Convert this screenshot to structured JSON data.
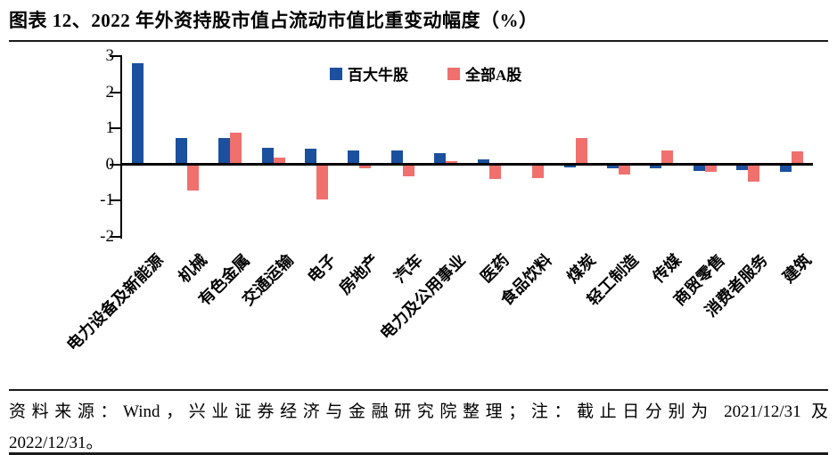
{
  "title": "图表 12、2022 年外资持股市值占流动市值比重变动幅度（%）",
  "footer": {
    "line1": "资料来源：Wind，兴业证券经济与金融研究院整理；注：截止日分别为 2021/12/31 及",
    "line2": "2022/12/31。"
  },
  "colors": {
    "series1": "#1b509e",
    "series2": "#f0706e",
    "axis": "#000000"
  },
  "chart_data": {
    "type": "bar",
    "title": "2022 年外资持股市值占流动市值比重变动幅度（%）",
    "categories": [
      "电力设备及新能源",
      "机械",
      "有色金属",
      "交通运输",
      "电子",
      "房地产",
      "汽车",
      "电力及公用事业",
      "医药",
      "食品饮料",
      "煤炭",
      "轻工制造",
      "传媒",
      "商贸零售",
      "消费者服务",
      "建筑"
    ],
    "series": [
      {
        "name": "百大牛股",
        "color": "#1b509e",
        "values": [
          2.8,
          0.74,
          0.74,
          0.45,
          0.42,
          0.38,
          0.39,
          0.32,
          0.13,
          0.0,
          -0.08,
          -0.1,
          -0.12,
          -0.18,
          -0.17,
          -0.21
        ]
      },
      {
        "name": "全部A股",
        "color": "#f0706e",
        "values": [
          0.0,
          -0.73,
          0.88,
          0.18,
          -0.98,
          -0.11,
          -0.33,
          0.08,
          -0.41,
          -0.38,
          0.72,
          -0.28,
          0.39,
          -0.21,
          -0.48,
          0.37
        ]
      }
    ],
    "ylim": [
      -2,
      3
    ],
    "yticks": [
      3,
      2,
      1,
      0,
      -1,
      -2
    ],
    "xlabel": "",
    "ylabel": "",
    "grid": false,
    "legend_position": "top-center"
  }
}
